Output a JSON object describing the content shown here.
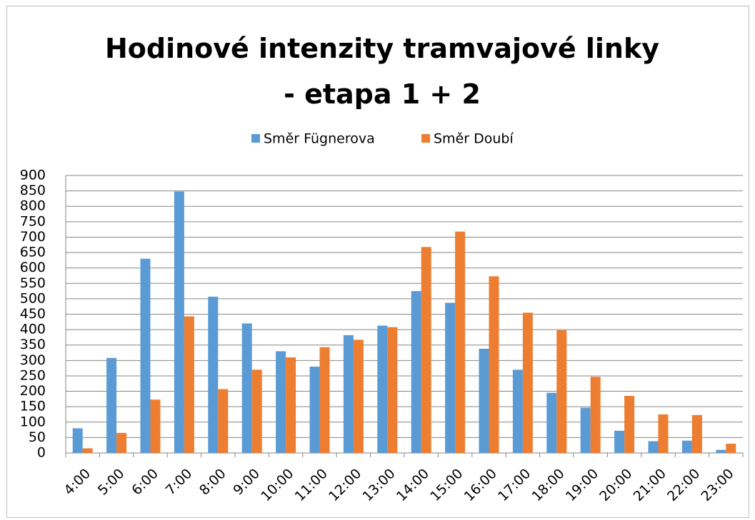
{
  "chart_data": {
    "type": "bar",
    "title": "Hodinové intenzity tramvajové linky - etapa 1 + 2",
    "categories": [
      "4:00",
      "5:00",
      "6:00",
      "7:00",
      "8:00",
      "9:00",
      "10:00",
      "11:00",
      "12:00",
      "13:00",
      "14:00",
      "15:00",
      "16:00",
      "17:00",
      "18:00",
      "19:00",
      "20:00",
      "21:00",
      "22:00",
      "23:00"
    ],
    "series": [
      {
        "name": "Směr Fügnerova",
        "color": "#5b9bd5",
        "values": [
          80,
          308,
          630,
          848,
          507,
          420,
          330,
          280,
          382,
          413,
          525,
          487,
          338,
          270,
          195,
          147,
          72,
          38,
          40,
          10
        ]
      },
      {
        "name": "Směr Doubí",
        "color": "#ed7d31",
        "values": [
          15,
          65,
          173,
          443,
          207,
          270,
          310,
          343,
          367,
          408,
          668,
          718,
          573,
          455,
          398,
          247,
          185,
          125,
          123,
          30
        ]
      }
    ],
    "ylim": [
      0,
      900
    ],
    "yticks": [
      0,
      50,
      100,
      150,
      200,
      250,
      300,
      350,
      400,
      450,
      500,
      550,
      600,
      650,
      700,
      750,
      800,
      850,
      900
    ],
    "grid": true,
    "legend": "top"
  }
}
